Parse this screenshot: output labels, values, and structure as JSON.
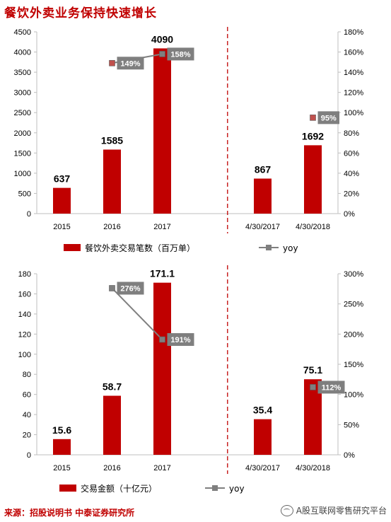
{
  "title": "餐饮外卖业务保持快速增长",
  "source": "来源：招股说明书  中泰证券研究所",
  "watermark": "A股互联网零售研究平台",
  "colors": {
    "bar": "#c00000",
    "yoy_line": "#7f7f7f",
    "yoy_marker_up": "#c0504d",
    "divider": "#c00000"
  },
  "chart_data": [
    {
      "type": "bar",
      "categories": [
        "2015",
        "2016",
        "2017",
        "",
        "4/30/2017",
        "4/30/2018"
      ],
      "series": [
        {
          "name": "餐饮外卖交易笔数（百万单）",
          "values": [
            637,
            1585,
            4090,
            null,
            867,
            1692
          ],
          "labels": [
            "637",
            "1585",
            "4090",
            "",
            "867",
            "1692"
          ]
        },
        {
          "name": "yoy",
          "axis": "right",
          "values": [
            null,
            149,
            158,
            null,
            null,
            95
          ],
          "labels": [
            "",
            "149%",
            "158%",
            "",
            "",
            "95%"
          ]
        }
      ],
      "left_ticks": [
        "0",
        "500",
        "1000",
        "1500",
        "2000",
        "2500",
        "3000",
        "3500",
        "4000",
        "4500"
      ],
      "right_ticks": [
        "0%",
        "20%",
        "40%",
        "60%",
        "80%",
        "100%",
        "120%",
        "140%",
        "160%",
        "180%"
      ],
      "ylim": [
        0,
        4500
      ],
      "ylim_right": [
        0,
        180
      ],
      "legend": "bottom"
    },
    {
      "type": "bar",
      "categories": [
        "2015",
        "2016",
        "2017",
        "",
        "4/30/2017",
        "4/30/2018"
      ],
      "series": [
        {
          "name": "交易金额（十亿元）",
          "values": [
            15.6,
            58.7,
            171.1,
            null,
            35.4,
            75.1
          ],
          "labels": [
            "15.6",
            "58.7",
            "171.1",
            "",
            "35.4",
            "75.1"
          ]
        },
        {
          "name": "yoy",
          "axis": "right",
          "values": [
            null,
            276,
            191,
            null,
            null,
            112
          ],
          "labels": [
            "",
            "276%",
            "191%",
            "",
            "",
            "112%"
          ]
        }
      ],
      "left_ticks": [
        "0",
        "20",
        "40",
        "60",
        "80",
        "100",
        "120",
        "140",
        "160",
        "180"
      ],
      "right_ticks": [
        "0%",
        "50%",
        "100%",
        "150%",
        "200%",
        "250%",
        "300%"
      ],
      "ylim": [
        0,
        180
      ],
      "ylim_right": [
        0,
        300
      ],
      "legend": "bottom"
    }
  ]
}
